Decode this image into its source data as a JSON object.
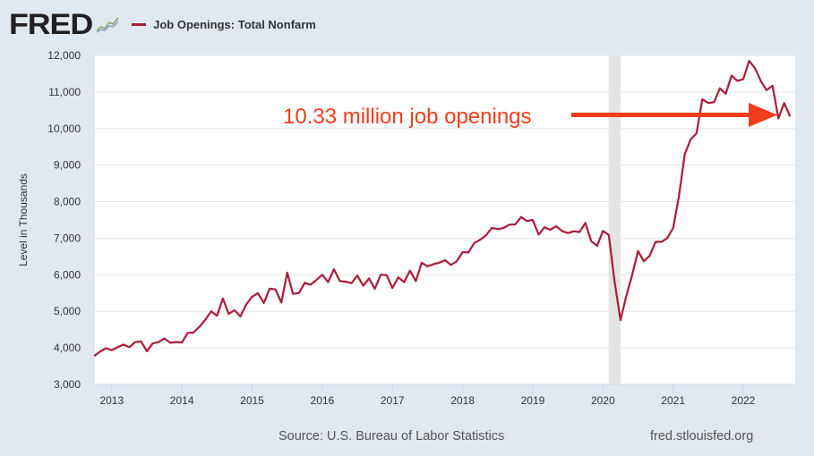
{
  "header": {
    "logo": "FRED",
    "logo_icon": "chart-sparkline-icon",
    "legend_label": "Job Openings: Total Nonfarm",
    "series_color": "#aa1c38"
  },
  "footer": {
    "source": "Source: U.S. Bureau of Labor Statistics",
    "site": "fred.stlouisfed.org"
  },
  "annotation": {
    "text": "10.33 million job openings",
    "color": "#f23d1c"
  },
  "chart_data": {
    "type": "line",
    "title": "Job Openings: Total Nonfarm",
    "xlabel": "",
    "ylabel": "Level in Thousands",
    "ylim": [
      3000,
      12000
    ],
    "xlim": [
      2012.76,
      2022.74
    ],
    "yticks": [
      3000,
      4000,
      5000,
      6000,
      7000,
      8000,
      9000,
      10000,
      11000,
      12000
    ],
    "ytick_labels": [
      "3,000",
      "4,000",
      "5,000",
      "6,000",
      "7,000",
      "8,000",
      "9,000",
      "10,000",
      "11,000",
      "12,000"
    ],
    "xticks": [
      2013,
      2014,
      2015,
      2016,
      2017,
      2018,
      2019,
      2020,
      2021,
      2022
    ],
    "xtick_labels": [
      "2013",
      "2014",
      "2015",
      "2016",
      "2017",
      "2018",
      "2019",
      "2020",
      "2021",
      "2022"
    ],
    "grid": "horizontal",
    "legend": "top-left",
    "recessions": [
      [
        2020.08,
        2020.25
      ]
    ],
    "x_start": 2012.75,
    "x_step_months": 1,
    "series": [
      {
        "name": "Job Openings: Total Nonfarm",
        "color": "#aa1c38",
        "values": [
          3780,
          3900,
          3990,
          3940,
          4020,
          4090,
          4020,
          4160,
          4180,
          3910,
          4120,
          4160,
          4260,
          4140,
          4160,
          4150,
          4410,
          4420,
          4580,
          4770,
          5000,
          4880,
          5350,
          4930,
          5030,
          4860,
          5190,
          5400,
          5500,
          5230,
          5620,
          5600,
          5240,
          6060,
          5480,
          5500,
          5780,
          5730,
          5860,
          6000,
          5800,
          6150,
          5830,
          5810,
          5770,
          5980,
          5700,
          5900,
          5620,
          6000,
          5990,
          5640,
          5930,
          5800,
          6110,
          5830,
          6330,
          6230,
          6290,
          6330,
          6400,
          6270,
          6370,
          6620,
          6610,
          6870,
          6960,
          7080,
          7280,
          7250,
          7280,
          7370,
          7380,
          7580,
          7470,
          7500,
          7100,
          7300,
          7230,
          7330,
          7200,
          7140,
          7190,
          7170,
          7420,
          6920,
          6790,
          7200,
          7090,
          5800,
          4760,
          5420,
          6000,
          6650,
          6370,
          6520,
          6900,
          6900,
          7000,
          7280,
          8150,
          9300,
          9700,
          9870,
          10800,
          10700,
          10720,
          11100,
          10950,
          11450,
          11300,
          11350,
          11850,
          11650,
          11300,
          11050,
          11170,
          10280,
          10700,
          10330
        ]
      }
    ]
  }
}
